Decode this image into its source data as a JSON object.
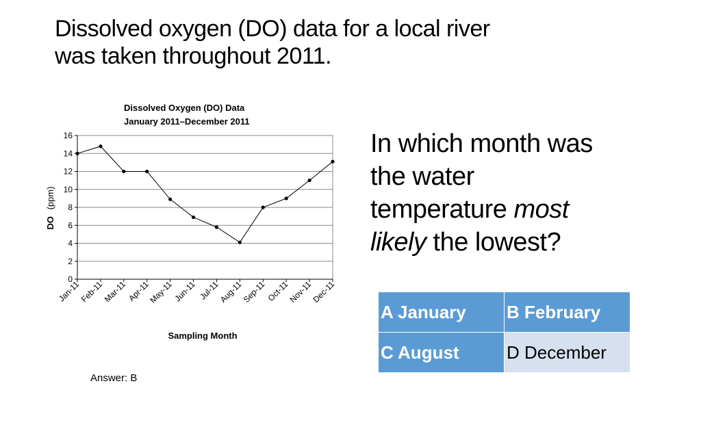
{
  "title": {
    "line1": "Dissolved oxygen (DO) data for a local river",
    "line2": "was taken throughout 2011."
  },
  "question": {
    "line1": "In which month was",
    "line2": "the water",
    "line3_plain": "temperature ",
    "line3_em": "most",
    "line4_em": "likely",
    "line4_plain": " the lowest?"
  },
  "options": {
    "a": "A January",
    "b": "B February",
    "c": "C August",
    "d": "D December"
  },
  "answer": "Answer: B",
  "chart_data": {
    "type": "line",
    "title": "Dissolved Oxygen (DO) Data",
    "subtitle": "January 2011–December 2011",
    "xlabel": "Sampling Month",
    "ylabel_main": "DO",
    "ylabel_unit": "(ppm)",
    "categories": [
      "Jan-11",
      "Feb-11",
      "Mar-11",
      "Apr-11",
      "May-11",
      "Jun-11",
      "Jul-11",
      "Aug-11",
      "Sep-11",
      "Oct-11",
      "Nov-11",
      "Dec-11"
    ],
    "values": [
      14,
      14.8,
      12,
      12,
      8.9,
      6.9,
      5.8,
      4.1,
      8,
      9,
      11,
      13.1
    ],
    "ylim": [
      0,
      16
    ],
    "yticks": [
      0,
      2,
      4,
      6,
      8,
      10,
      12,
      14,
      16
    ],
    "grid": true
  }
}
